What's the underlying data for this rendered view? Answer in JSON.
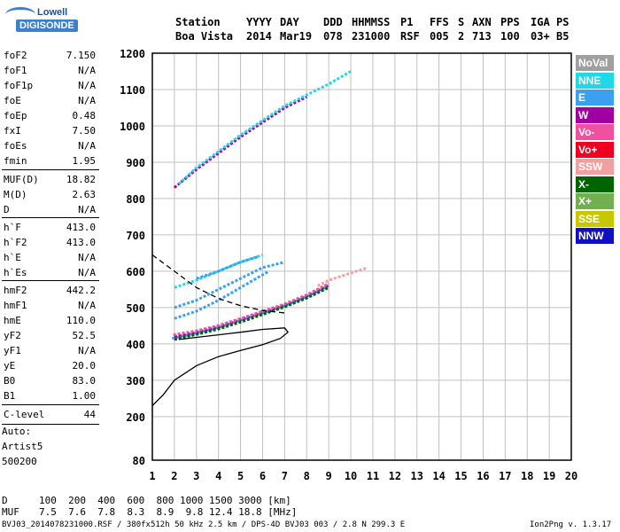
{
  "logo": {
    "line1": "Lowell",
    "line2": "DIGISONDE"
  },
  "header": {
    "labels": [
      "Station",
      "YYYY",
      "DAY",
      "DDD",
      "HHMMSS",
      "P1",
      "FFS",
      "S",
      "AXN",
      "PPS",
      "IGA",
      "PS"
    ],
    "values": [
      "Boa Vista",
      "2014",
      "Mar19",
      "078",
      "231000",
      "RSF",
      "005",
      "2",
      "713",
      "100",
      "03+",
      "B5"
    ]
  },
  "parameters": [
    {
      "name": "foF2",
      "value": "7.150"
    },
    {
      "name": "foF1",
      "value": "N/A"
    },
    {
      "name": "foF1p",
      "value": "N/A"
    },
    {
      "name": "foE",
      "value": "N/A"
    },
    {
      "name": "foEp",
      "value": "0.48"
    },
    {
      "name": "fxI",
      "value": "7.50"
    },
    {
      "name": "foEs",
      "value": "N/A"
    },
    {
      "name": "fmin",
      "value": "1.95"
    },
    {
      "name": "MUF(D)",
      "value": "18.82"
    },
    {
      "name": "M(D)",
      "value": "2.63"
    },
    {
      "name": "D",
      "value": "N/A"
    },
    {
      "name": "h`F",
      "value": "413.0"
    },
    {
      "name": "h`F2",
      "value": "413.0"
    },
    {
      "name": "h`E",
      "value": "N/A"
    },
    {
      "name": "h`Es",
      "value": "N/A"
    },
    {
      "name": "hmF2",
      "value": "442.2"
    },
    {
      "name": "hmF1",
      "value": "N/A"
    },
    {
      "name": "hmE",
      "value": "110.0"
    },
    {
      "name": "yF2",
      "value": "52.5"
    },
    {
      "name": "yF1",
      "value": "N/A"
    },
    {
      "name": "yE",
      "value": "20.0"
    },
    {
      "name": "B0",
      "value": "83.0"
    },
    {
      "name": "B1",
      "value": "1.00"
    },
    {
      "name": "C-level",
      "value": "44"
    }
  ],
  "auto": {
    "line1": "Auto:",
    "line2": "Artist5",
    "line3": "500200"
  },
  "muf_table": {
    "d_label": "D",
    "d_values": "100  200  400  600  800 1000 1500 3000 [km]",
    "muf_label": "MUF",
    "muf_values": "7.5  7.6  7.8  8.3  8.9  9.8 12.4 18.8 [MHz]"
  },
  "legend": [
    {
      "label": "NoVal",
      "color": "#a0a0a0"
    },
    {
      "label": "NNE",
      "color": "#20d8e8"
    },
    {
      "label": "E",
      "color": "#3ba0f0"
    },
    {
      "label": "W",
      "color": "#a000a0"
    },
    {
      "label": "Vo-",
      "color": "#f050a0"
    },
    {
      "label": "Vo+",
      "color": "#f00020"
    },
    {
      "label": "SSW",
      "color": "#f0a0a0"
    },
    {
      "label": "X-",
      "color": "#006400"
    },
    {
      "label": "X+",
      "color": "#70b050"
    },
    {
      "label": "SSE",
      "color": "#c8c800"
    },
    {
      "label": "NNW",
      "color": "#1010c0"
    }
  ],
  "footer": {
    "left": "BVJ03_2014078231000.RSF / 380fx512h 50 kHz 2.5 km / DPS-4D BVJ03 003 / 2.8 N 299.3 E",
    "right": "Ion2Png v. 1.3.17"
  },
  "chart_data": {
    "type": "scatter",
    "xlim": [
      1,
      20
    ],
    "ylim": [
      80,
      1200
    ],
    "xticks": [
      1,
      2,
      3,
      4,
      5,
      6,
      7,
      8,
      9,
      10,
      11,
      12,
      13,
      14,
      15,
      16,
      17,
      18,
      19,
      20
    ],
    "yticks": [
      80,
      200,
      300,
      400,
      500,
      600,
      700,
      800,
      900,
      1000,
      1100,
      1200
    ],
    "grid": true,
    "legend_position": "right",
    "series": [
      {
        "color": "#3ba0f0",
        "kind": "trace",
        "points": [
          [
            1.9,
            415
          ],
          [
            3,
            430
          ],
          [
            4,
            445
          ],
          [
            5,
            465
          ],
          [
            6,
            485
          ],
          [
            7,
            505
          ],
          [
            8,
            530
          ],
          [
            9,
            560
          ]
        ]
      },
      {
        "color": "#a000a0",
        "kind": "trace",
        "points": [
          [
            2,
            420
          ],
          [
            3,
            432
          ],
          [
            4,
            447
          ],
          [
            5,
            467
          ],
          [
            6,
            487
          ],
          [
            7,
            507
          ],
          [
            8,
            532
          ],
          [
            9,
            562
          ]
        ]
      },
      {
        "color": "#006400",
        "kind": "trace",
        "points": [
          [
            2,
            412
          ],
          [
            3,
            426
          ],
          [
            4,
            441
          ],
          [
            5,
            460
          ],
          [
            6,
            481
          ],
          [
            7,
            502
          ],
          [
            8,
            526
          ],
          [
            9,
            555
          ]
        ]
      },
      {
        "color": "#f050a0",
        "kind": "trace",
        "points": [
          [
            1.95,
            425
          ],
          [
            3,
            436
          ],
          [
            4,
            451
          ],
          [
            5,
            470
          ],
          [
            6,
            490
          ],
          [
            7,
            510
          ],
          [
            8,
            535
          ],
          [
            9,
            566
          ]
        ]
      },
      {
        "color": "#f0a0a0",
        "kind": "trace",
        "points": [
          [
            8.5,
            560
          ],
          [
            9,
            575
          ],
          [
            9.5,
            585
          ],
          [
            10,
            595
          ],
          [
            10.7,
            608
          ]
        ]
      },
      {
        "color": "#3ba0f0",
        "kind": "trace",
        "points": [
          [
            2,
            470
          ],
          [
            3,
            490
          ],
          [
            4,
            520
          ],
          [
            5,
            555
          ],
          [
            6,
            590
          ],
          [
            6.3,
            600
          ]
        ]
      },
      {
        "color": "#3ba0f0",
        "kind": "trace",
        "points": [
          [
            2,
            500
          ],
          [
            3,
            520
          ],
          [
            4,
            550
          ],
          [
            5,
            580
          ],
          [
            6,
            610
          ],
          [
            7,
            625
          ]
        ]
      },
      {
        "color": "#20d8e8",
        "kind": "trace",
        "points": [
          [
            2,
            555
          ],
          [
            3,
            575
          ],
          [
            4,
            600
          ],
          [
            5,
            625
          ],
          [
            6,
            645
          ]
        ]
      },
      {
        "color": "#3ba0f0",
        "kind": "trace",
        "points": [
          [
            3,
            580
          ],
          [
            4,
            600
          ],
          [
            5,
            625
          ],
          [
            5.8,
            640
          ]
        ]
      },
      {
        "color": "#a000a0",
        "kind": "trace",
        "points": [
          [
            2,
            830
          ],
          [
            3,
            880
          ],
          [
            4,
            925
          ],
          [
            5,
            970
          ],
          [
            6,
            1010
          ],
          [
            7,
            1050
          ],
          [
            8,
            1080
          ]
        ]
      },
      {
        "color": "#20d8e8",
        "kind": "trace",
        "points": [
          [
            2.2,
            840
          ],
          [
            3,
            885
          ],
          [
            4,
            930
          ],
          [
            5,
            975
          ],
          [
            6,
            1015
          ],
          [
            7,
            1055
          ],
          [
            8,
            1085
          ],
          [
            9,
            1115
          ],
          [
            10,
            1150
          ]
        ]
      },
      {
        "color": "#000000",
        "kind": "profile",
        "points": [
          [
            1,
            230
          ],
          [
            1.5,
            260
          ],
          [
            2,
            300
          ],
          [
            3,
            340
          ],
          [
            4,
            365
          ],
          [
            5,
            382
          ],
          [
            6,
            398
          ],
          [
            6.8,
            415
          ],
          [
            7.15,
            432
          ],
          [
            7.0,
            444
          ],
          [
            6.0,
            440
          ],
          [
            5.0,
            432
          ],
          [
            4.0,
            425
          ],
          [
            3.0,
            418
          ],
          [
            2.2,
            412
          ]
        ]
      },
      {
        "color": "#000000",
        "kind": "dashed",
        "points": [
          [
            1,
            645
          ],
          [
            2,
            600
          ],
          [
            3,
            555
          ],
          [
            4,
            525
          ],
          [
            5,
            505
          ],
          [
            6,
            492
          ],
          [
            7,
            485
          ]
        ]
      }
    ]
  }
}
